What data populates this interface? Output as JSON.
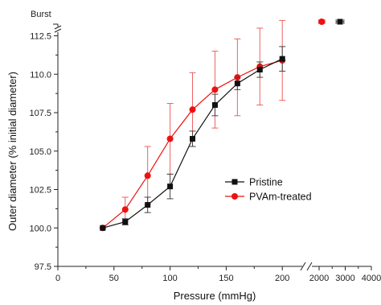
{
  "chart_data": {
    "type": "line",
    "xlabel": "Pressure (mmHg)",
    "ylabel": "Outer diameter (% initial diameter)",
    "xlim": [
      0,
      220
    ],
    "ylim": [
      97.5,
      112.5
    ],
    "x_ticks": [
      "0",
      "50",
      "100",
      "150",
      "200"
    ],
    "x_broken_ticks": [
      "2000",
      "3000",
      "4000"
    ],
    "y_ticks": [
      "97.5",
      "100.0",
      "102.5",
      "105.0",
      "107.5",
      "110.0",
      "112.5"
    ],
    "burst_label": "Burst",
    "legend_position": "center-right",
    "series": [
      {
        "name": "Pristine",
        "color": "#111111",
        "marker": "square",
        "x": [
          40,
          60,
          80,
          100,
          120,
          140,
          160,
          180,
          200
        ],
        "y": [
          100.0,
          100.4,
          101.5,
          102.7,
          105.8,
          108.0,
          109.4,
          110.3,
          111.0
        ],
        "err": [
          0,
          0.2,
          0.5,
          0.8,
          0.5,
          0.7,
          0.4,
          0.5,
          0.8
        ],
        "burst_x": 2800,
        "burst_err": 150
      },
      {
        "name": "PVAm-treated",
        "color": "#ee1111",
        "marker": "circle",
        "x": [
          40,
          60,
          80,
          100,
          120,
          140,
          160,
          180,
          200
        ],
        "y": [
          100.0,
          101.2,
          103.4,
          105.8,
          107.7,
          109.0,
          109.8,
          110.5,
          110.9
        ],
        "err": [
          0,
          0.8,
          1.9,
          2.3,
          2.4,
          2.5,
          2.5,
          2.5,
          2.6
        ],
        "burst_x": 2100,
        "burst_err": 120
      }
    ]
  }
}
